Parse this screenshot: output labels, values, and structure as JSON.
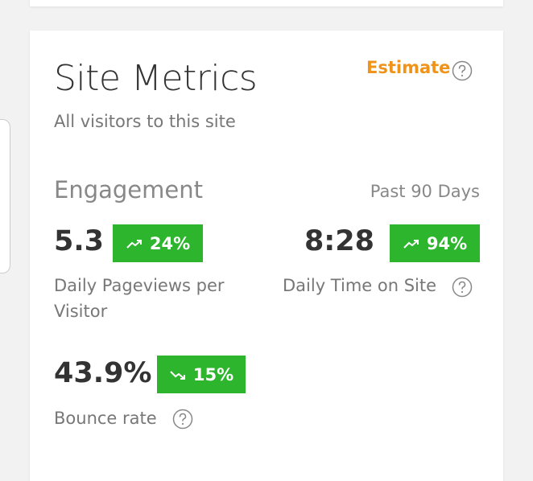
{
  "header": {
    "title": "Site Metrics",
    "subtitle": "All visitors to this site",
    "estimate": "Estimate"
  },
  "engagement": {
    "title": "Engagement",
    "period": "Past 90 Days",
    "metrics": [
      {
        "value": "5.3",
        "change": "24%",
        "trend": "up",
        "label": "Daily Pageviews per Visitor"
      },
      {
        "value": "8:28",
        "change": "94%",
        "trend": "up",
        "label": "Daily Time on Site"
      },
      {
        "value": "43.9%",
        "change": "15%",
        "trend": "down",
        "label": "Bounce rate"
      }
    ]
  }
}
